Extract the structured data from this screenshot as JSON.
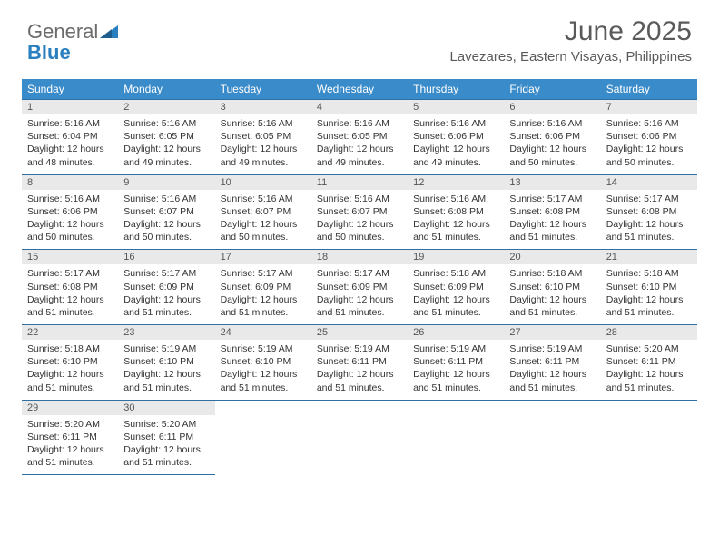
{
  "brand": {
    "general": "General",
    "blue": "Blue"
  },
  "colors": {
    "header_bg": "#3a8bc9",
    "header_text": "#ffffff",
    "daynum_bg": "#e9e9e9",
    "border": "#2f6fa3",
    "text": "#333333",
    "title": "#5a5a5a",
    "logo_gray": "#6b6b6b",
    "logo_blue": "#2a7fbf",
    "background": "#ffffff"
  },
  "title": "June 2025",
  "location": "Lavezares, Eastern Visayas, Philippines",
  "weekdays": [
    "Sunday",
    "Monday",
    "Tuesday",
    "Wednesday",
    "Thursday",
    "Friday",
    "Saturday"
  ],
  "font": {
    "title_size": 30,
    "location_size": 15,
    "header_size": 12,
    "daynum_size": 11,
    "body_size": 10.5
  },
  "weeks": [
    [
      {
        "n": "1",
        "sr": "5:16 AM",
        "ss": "6:04 PM",
        "dl": "12 hours and 48 minutes."
      },
      {
        "n": "2",
        "sr": "5:16 AM",
        "ss": "6:05 PM",
        "dl": "12 hours and 49 minutes."
      },
      {
        "n": "3",
        "sr": "5:16 AM",
        "ss": "6:05 PM",
        "dl": "12 hours and 49 minutes."
      },
      {
        "n": "4",
        "sr": "5:16 AM",
        "ss": "6:05 PM",
        "dl": "12 hours and 49 minutes."
      },
      {
        "n": "5",
        "sr": "5:16 AM",
        "ss": "6:06 PM",
        "dl": "12 hours and 49 minutes."
      },
      {
        "n": "6",
        "sr": "5:16 AM",
        "ss": "6:06 PM",
        "dl": "12 hours and 50 minutes."
      },
      {
        "n": "7",
        "sr": "5:16 AM",
        "ss": "6:06 PM",
        "dl": "12 hours and 50 minutes."
      }
    ],
    [
      {
        "n": "8",
        "sr": "5:16 AM",
        "ss": "6:06 PM",
        "dl": "12 hours and 50 minutes."
      },
      {
        "n": "9",
        "sr": "5:16 AM",
        "ss": "6:07 PM",
        "dl": "12 hours and 50 minutes."
      },
      {
        "n": "10",
        "sr": "5:16 AM",
        "ss": "6:07 PM",
        "dl": "12 hours and 50 minutes."
      },
      {
        "n": "11",
        "sr": "5:16 AM",
        "ss": "6:07 PM",
        "dl": "12 hours and 50 minutes."
      },
      {
        "n": "12",
        "sr": "5:16 AM",
        "ss": "6:08 PM",
        "dl": "12 hours and 51 minutes."
      },
      {
        "n": "13",
        "sr": "5:17 AM",
        "ss": "6:08 PM",
        "dl": "12 hours and 51 minutes."
      },
      {
        "n": "14",
        "sr": "5:17 AM",
        "ss": "6:08 PM",
        "dl": "12 hours and 51 minutes."
      }
    ],
    [
      {
        "n": "15",
        "sr": "5:17 AM",
        "ss": "6:08 PM",
        "dl": "12 hours and 51 minutes."
      },
      {
        "n": "16",
        "sr": "5:17 AM",
        "ss": "6:09 PM",
        "dl": "12 hours and 51 minutes."
      },
      {
        "n": "17",
        "sr": "5:17 AM",
        "ss": "6:09 PM",
        "dl": "12 hours and 51 minutes."
      },
      {
        "n": "18",
        "sr": "5:17 AM",
        "ss": "6:09 PM",
        "dl": "12 hours and 51 minutes."
      },
      {
        "n": "19",
        "sr": "5:18 AM",
        "ss": "6:09 PM",
        "dl": "12 hours and 51 minutes."
      },
      {
        "n": "20",
        "sr": "5:18 AM",
        "ss": "6:10 PM",
        "dl": "12 hours and 51 minutes."
      },
      {
        "n": "21",
        "sr": "5:18 AM",
        "ss": "6:10 PM",
        "dl": "12 hours and 51 minutes."
      }
    ],
    [
      {
        "n": "22",
        "sr": "5:18 AM",
        "ss": "6:10 PM",
        "dl": "12 hours and 51 minutes."
      },
      {
        "n": "23",
        "sr": "5:19 AM",
        "ss": "6:10 PM",
        "dl": "12 hours and 51 minutes."
      },
      {
        "n": "24",
        "sr": "5:19 AM",
        "ss": "6:10 PM",
        "dl": "12 hours and 51 minutes."
      },
      {
        "n": "25",
        "sr": "5:19 AM",
        "ss": "6:11 PM",
        "dl": "12 hours and 51 minutes."
      },
      {
        "n": "26",
        "sr": "5:19 AM",
        "ss": "6:11 PM",
        "dl": "12 hours and 51 minutes."
      },
      {
        "n": "27",
        "sr": "5:19 AM",
        "ss": "6:11 PM",
        "dl": "12 hours and 51 minutes."
      },
      {
        "n": "28",
        "sr": "5:20 AM",
        "ss": "6:11 PM",
        "dl": "12 hours and 51 minutes."
      }
    ],
    [
      {
        "n": "29",
        "sr": "5:20 AM",
        "ss": "6:11 PM",
        "dl": "12 hours and 51 minutes."
      },
      {
        "n": "30",
        "sr": "5:20 AM",
        "ss": "6:11 PM",
        "dl": "12 hours and 51 minutes."
      },
      null,
      null,
      null,
      null,
      null
    ]
  ],
  "labels": {
    "sunrise": "Sunrise:",
    "sunset": "Sunset:",
    "daylight": "Daylight:"
  }
}
